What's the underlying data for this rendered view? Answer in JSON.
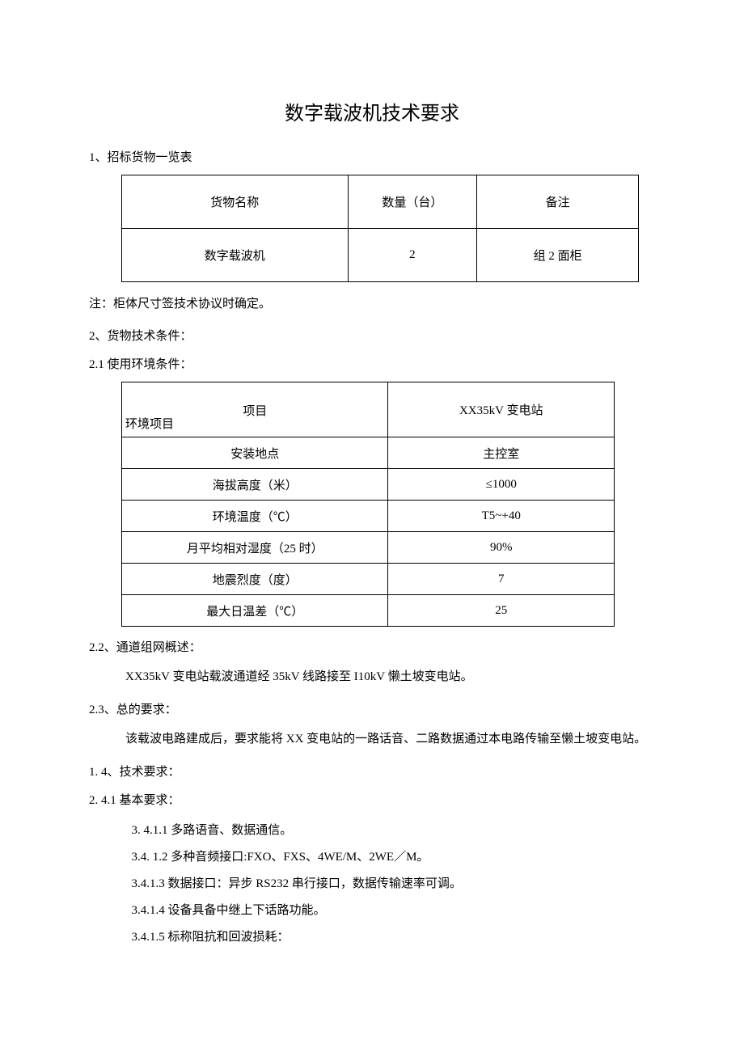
{
  "title": "数字载波机技术要求",
  "section1": {
    "heading": "1、招标货物一览表",
    "table": {
      "headers": [
        "货物名称",
        "数量（台）",
        "备注"
      ],
      "rows": [
        [
          "数字载波机",
          "2",
          "组 2 面柜"
        ]
      ]
    },
    "note": "注：柜体尺寸签技术协议时确定。"
  },
  "section2": {
    "heading": "2、货物技术条件：",
    "sub1": {
      "heading": "2.1 使用环境条件：",
      "table": {
        "header_top": "项目",
        "header_bottom": "环境项目",
        "header_col2": "XX35kV 变电站",
        "rows": [
          [
            "安装地点",
            "主控室"
          ],
          [
            "海拔高度（米）",
            "≤1000"
          ],
          [
            "环境温度（℃）",
            "T5~+40"
          ],
          [
            "月平均相对湿度（25 时）",
            "90%"
          ],
          [
            "地震烈度（度）",
            "7"
          ],
          [
            "最大日温差（℃）",
            "25"
          ]
        ]
      }
    },
    "sub2": {
      "heading": "2.2、通道组网概述：",
      "body": "XX35kV 变电站载波通道经 35kV 线路接至 I10kV 懒土坡变电站。"
    },
    "sub3": {
      "heading": "2.3、总的要求：",
      "body": "该载波电路建成后，要求能将 XX 变电站的一路话音、二路数据通过本电路传输至懒土坡变电站。"
    },
    "sub4": {
      "heading1": "1.  4、技术要求：",
      "heading2": "2.  4.1 基本要求：",
      "items": [
        "3.  4.1.1 多路语音、数据通信。",
        "3.4.  1.2 多种音频接口:FXO、FXS、4WE/M、2WE／M。",
        "3.4.1.3 数据接口：异步 RS232 串行接口，数据传输速率可调。",
        "3.4.1.4 设备具备中继上下话路功能。",
        "3.4.1.5 标称阻抗和回波损耗："
      ]
    }
  },
  "colors": {
    "text": "#000000",
    "background": "#ffffff",
    "border": "#000000"
  }
}
